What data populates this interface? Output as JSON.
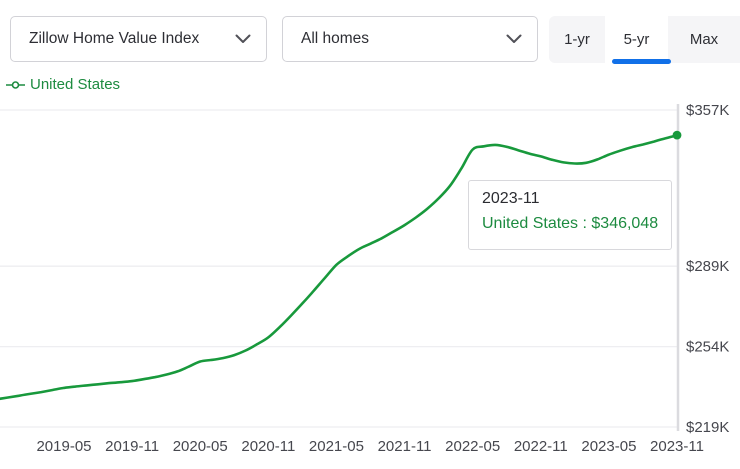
{
  "controls": {
    "metric_dropdown": {
      "value": "Zillow Home Value Index"
    },
    "segment_dropdown": {
      "value": "All homes"
    },
    "range_tabs": [
      {
        "label": "1-yr",
        "selected": false
      },
      {
        "label": "5-yr",
        "selected": true
      },
      {
        "label": "Max",
        "selected": false
      }
    ]
  },
  "legend": {
    "label": "United States"
  },
  "tooltip": {
    "date": "2023-11",
    "text": "United States : $346,048"
  },
  "colors": {
    "accent_blue": "#1170e8",
    "line_green": "#18993c",
    "green_text": "#1d8b40",
    "gridline": "#eeeef1",
    "axis_line": "#dbdbdf",
    "tick_text": "#46474e"
  },
  "chart_data": {
    "type": "line",
    "title": "Zillow Home Value Index — All homes — 5-yr — United States",
    "xlabel": "",
    "ylabel": "",
    "grid": "horizontal",
    "legend_position": "top-left",
    "ylim": [
      219000,
      357000
    ],
    "y_ticks": [
      {
        "label": "$357K",
        "value": 357000
      },
      {
        "label": "$289K",
        "value": 289000
      },
      {
        "label": "$254K",
        "value": 254000
      },
      {
        "label": "$219K",
        "value": 219000
      }
    ],
    "x_ticks": [
      "2019-05",
      "2019-11",
      "2020-05",
      "2020-11",
      "2021-05",
      "2021-11",
      "2022-05",
      "2022-11",
      "2023-05",
      "2023-11"
    ],
    "series": [
      {
        "name": "United States",
        "x": [
          "2018-11",
          "2018-12",
          "2019-01",
          "2019-02",
          "2019-03",
          "2019-04",
          "2019-05",
          "2019-06",
          "2019-07",
          "2019-08",
          "2019-09",
          "2019-10",
          "2019-11",
          "2019-12",
          "2020-01",
          "2020-02",
          "2020-03",
          "2020-04",
          "2020-05",
          "2020-06",
          "2020-07",
          "2020-08",
          "2020-09",
          "2020-10",
          "2020-11",
          "2020-12",
          "2021-01",
          "2021-02",
          "2021-03",
          "2021-04",
          "2021-05",
          "2021-06",
          "2021-07",
          "2021-08",
          "2021-09",
          "2021-10",
          "2021-11",
          "2021-12",
          "2022-01",
          "2022-02",
          "2022-03",
          "2022-04",
          "2022-05",
          "2022-06",
          "2022-07",
          "2022-08",
          "2022-09",
          "2022-10",
          "2022-11",
          "2022-12",
          "2023-01",
          "2023-02",
          "2023-03",
          "2023-04",
          "2023-05",
          "2023-06",
          "2023-07",
          "2023-08",
          "2023-09",
          "2023-10",
          "2023-11"
        ],
        "values": [
          231000,
          231800,
          232600,
          233400,
          234200,
          235100,
          236000,
          236600,
          237100,
          237600,
          238100,
          238500,
          239000,
          239800,
          240700,
          241800,
          243200,
          245300,
          247500,
          248200,
          249000,
          250300,
          252300,
          255000,
          258000,
          262500,
          267500,
          272800,
          278300,
          284000,
          289600,
          293300,
          296500,
          298800,
          301200,
          304000,
          306900,
          310200,
          314000,
          318500,
          324000,
          331500,
          339800,
          341200,
          341800,
          341000,
          339500,
          338000,
          336800,
          335300,
          334200,
          333700,
          334000,
          335500,
          337600,
          339300,
          340800,
          342000,
          343300,
          344700,
          346048
        ]
      }
    ],
    "latest_point": {
      "x": "2023-11",
      "value": 346048
    }
  }
}
